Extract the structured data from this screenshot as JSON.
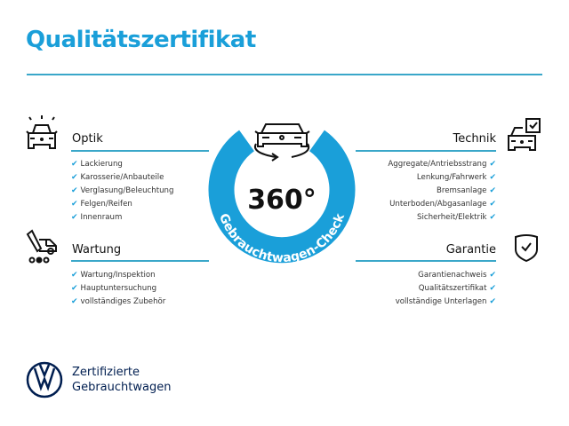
{
  "title": "Qualitätszertifikat",
  "colors": {
    "accent": "#1a9fd9",
    "rule": "#3aa7c9",
    "check": "#1a9fd9",
    "brand": "#001e50"
  },
  "check_mark": "✔",
  "center": {
    "degrees": "360°",
    "ring_text": "Gebrauchtwagen-Check",
    "icon": "car-rotate-icon"
  },
  "sections": {
    "optik": {
      "heading": "Optik",
      "icon": "car-lights-icon",
      "items": [
        "Lackierung",
        "Karosserie/Anbauteile",
        "Verglasung/Beleuchtung",
        "Felgen/Reifen",
        "Innenraum"
      ]
    },
    "wartung": {
      "heading": "Wartung",
      "icon": "service-van-icon",
      "items": [
        "Wartung/Inspektion",
        "Hauptuntersuchung",
        "vollständiges Zubehör"
      ]
    },
    "technik": {
      "heading": "Technik",
      "icon": "car-checkbox-icon",
      "items": [
        "Aggregate/Antriebsstrang",
        "Lenkung/Fahrwerk",
        "Bremsanlage",
        "Unterboden/Abgasanlage",
        "Sicherheit/Elektrik"
      ]
    },
    "garantie": {
      "heading": "Garantie",
      "icon": "shield-check-icon",
      "items": [
        "Garantienachweis",
        "Qualitätszertifikat",
        "vollständige Unterlagen"
      ]
    }
  },
  "brand": {
    "line1": "Zertifizierte",
    "line2": "Gebrauchtwagen",
    "logo": "vw-logo"
  }
}
